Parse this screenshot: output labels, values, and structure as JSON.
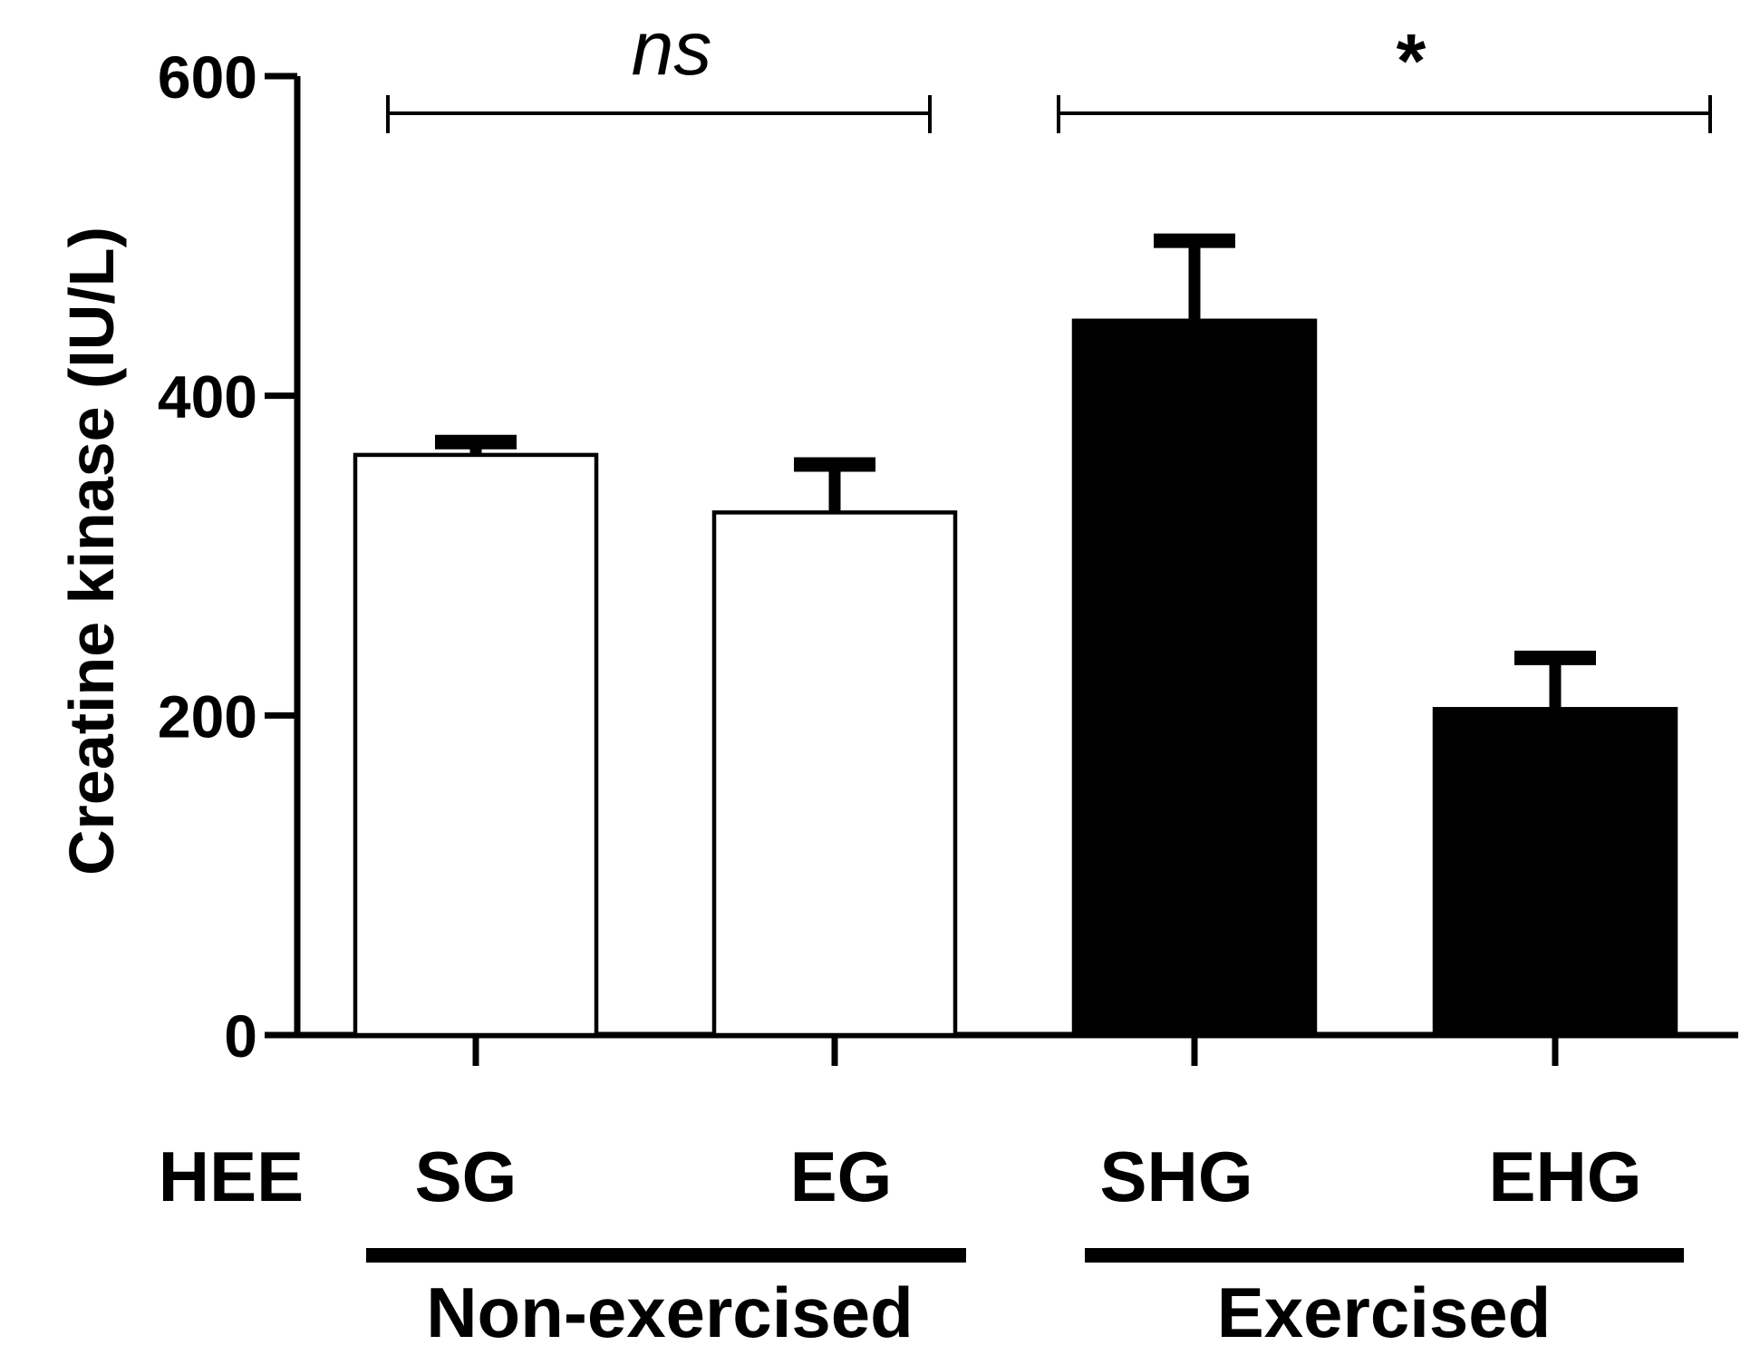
{
  "chart_data": {
    "type": "bar",
    "title": "",
    "xlabel": "",
    "ylabel": "Creatine kinase (IU/L)",
    "ylim": [
      0,
      600
    ],
    "yticks": [
      0,
      200,
      400,
      600
    ],
    "row_label": "HEE",
    "categories": [
      "SG",
      "EG",
      "SHG",
      "EHG"
    ],
    "values": [
      363,
      327,
      447,
      204
    ],
    "errors": [
      8,
      30,
      50,
      32
    ],
    "fill": [
      "#ffffff",
      "#ffffff",
      "#000000",
      "#000000"
    ],
    "groups": [
      {
        "label": "Non-exercised",
        "categories": [
          "SG",
          "EG"
        ]
      },
      {
        "label": "Exercised",
        "categories": [
          "SHG",
          "EHG"
        ]
      }
    ],
    "significance": [
      {
        "label": "ns",
        "between": [
          "SG",
          "EG"
        ]
      },
      {
        "label": "*",
        "between": [
          "SHG",
          "EHG"
        ]
      }
    ],
    "colors": {
      "stroke": "#000000",
      "background": "#ffffff"
    }
  }
}
